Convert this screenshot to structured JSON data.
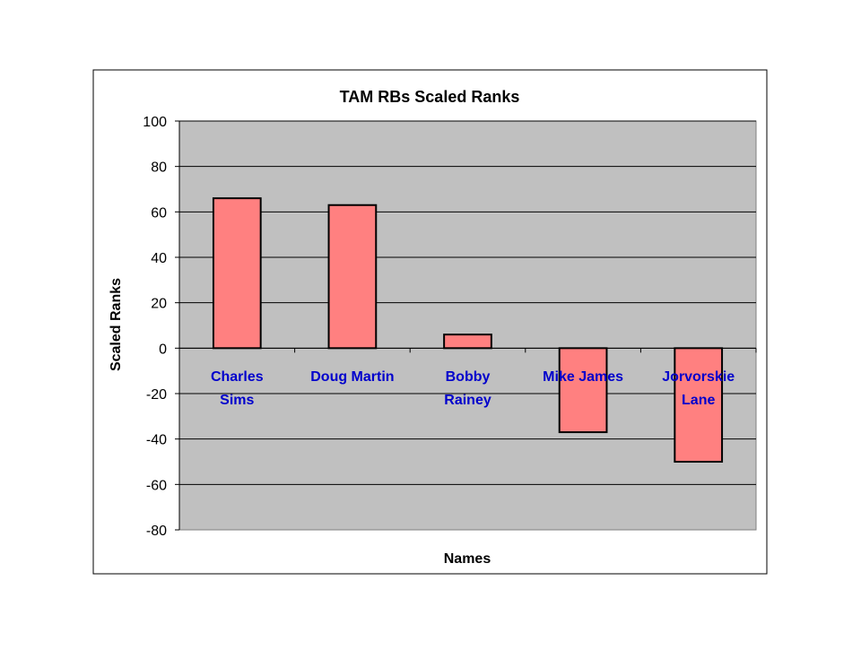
{
  "chart_data": {
    "type": "bar",
    "title": "TAM RBs Scaled Ranks",
    "xlabel": "Names",
    "ylabel": "Scaled Ranks",
    "categories": [
      [
        "Charles",
        "Sims"
      ],
      [
        "Doug Martin"
      ],
      [
        "Bobby",
        "Rainey"
      ],
      [
        "Mike James"
      ],
      [
        "Jorvorskie",
        "Lane"
      ]
    ],
    "values": [
      66,
      63,
      6,
      -37,
      -50
    ],
    "ylim": [
      -80,
      100
    ],
    "yticks": [
      100,
      80,
      60,
      40,
      20,
      0,
      -20,
      -40,
      -60,
      -80
    ],
    "grid": true,
    "legend": "none",
    "colors": {
      "bar_fill": "#ff8080",
      "bar_stroke": "#000000",
      "plot_background": "#c0c0c0",
      "category_label": "#0000cc",
      "gridline": "#000000"
    }
  }
}
